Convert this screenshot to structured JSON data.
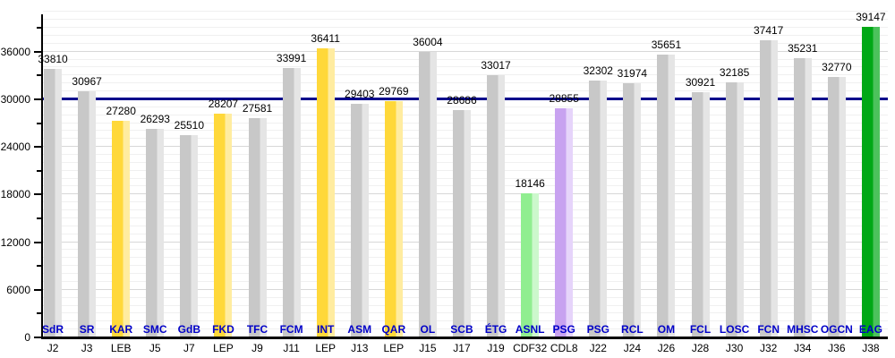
{
  "chart_data": {
    "type": "bar",
    "title": "",
    "xlabel": "",
    "ylabel": "",
    "ylim": [
      0,
      41600
    ],
    "yticks": [
      0,
      6000,
      12000,
      18000,
      24000,
      30000,
      36000
    ],
    "ytick_minor_step": 3000,
    "grid_minor_step": 1000,
    "grid_major_step": 6000,
    "legend_position": "none",
    "grid": "on",
    "reference_line": {
      "value": 30000,
      "color": "#00008b"
    },
    "categories": [
      "J2",
      "J3",
      "LEB",
      "J5",
      "J7",
      "LEP",
      "J9",
      "J11",
      "LEP",
      "J13",
      "LEP",
      "J15",
      "J17",
      "J19",
      "CDF32",
      "CDL8",
      "J22",
      "J24",
      "J26",
      "J28",
      "J30",
      "J32",
      "J34",
      "J36",
      "J38"
    ],
    "bars": [
      {
        "team": "SdR",
        "value": 33810,
        "color_key": "gray"
      },
      {
        "team": "SR",
        "value": 30967,
        "color_key": "gray"
      },
      {
        "team": "KAR",
        "value": 27280,
        "color_key": "yellow"
      },
      {
        "team": "SMC",
        "value": 26293,
        "color_key": "gray"
      },
      {
        "team": "GdB",
        "value": 25510,
        "color_key": "gray"
      },
      {
        "team": "FKD",
        "value": 28207,
        "color_key": "yellow"
      },
      {
        "team": "TFC",
        "value": 27581,
        "color_key": "gray"
      },
      {
        "team": "FCM",
        "value": 33991,
        "color_key": "gray"
      },
      {
        "team": "INT",
        "value": 36411,
        "color_key": "yellow"
      },
      {
        "team": "ASM",
        "value": 29403,
        "color_key": "gray"
      },
      {
        "team": "QAR",
        "value": 29769,
        "color_key": "yellow"
      },
      {
        "team": "OL",
        "value": 36004,
        "color_key": "gray"
      },
      {
        "team": "SCB",
        "value": 28686,
        "color_key": "gray"
      },
      {
        "team": "ÉTG",
        "value": 33017,
        "color_key": "gray"
      },
      {
        "team": "ASNL",
        "value": 18146,
        "color_key": "lightgreen"
      },
      {
        "team": "PSG",
        "value": 28855,
        "color_key": "purple"
      },
      {
        "team": "PSG",
        "value": 32302,
        "color_key": "gray"
      },
      {
        "team": "RCL",
        "value": 31974,
        "color_key": "gray"
      },
      {
        "team": "OM",
        "value": 35651,
        "color_key": "gray"
      },
      {
        "team": "FCL",
        "value": 30921,
        "color_key": "gray"
      },
      {
        "team": "LOSC",
        "value": 32185,
        "color_key": "gray"
      },
      {
        "team": "FCN",
        "value": 37417,
        "color_key": "gray"
      },
      {
        "team": "MHSC",
        "value": 35231,
        "color_key": "gray"
      },
      {
        "team": "OGCN",
        "value": 32770,
        "color_key": "gray"
      },
      {
        "team": "EAG",
        "value": 39147,
        "color_key": "green"
      }
    ],
    "colors": {
      "gray": [
        "#c8c8c8",
        "#e5e5e5"
      ],
      "yellow": [
        "#ffd83a",
        "#ffeca0"
      ],
      "lightgreen": [
        "#90ee90",
        "#ccf8cc"
      ],
      "purple": [
        "#c8a2f0",
        "#e6d4fa"
      ],
      "green": [
        "#00a816",
        "#4cc25c"
      ],
      "axis": "#000000",
      "grid_minor": "#f0f0f0",
      "grid_major": "#d8d8d8",
      "reference_line": "#00008b",
      "team_label": "#0000c8",
      "value_label": "#000000",
      "tick_label": "#000000"
    }
  }
}
